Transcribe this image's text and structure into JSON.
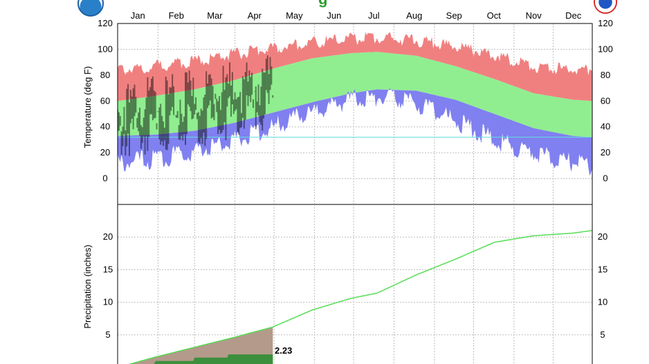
{
  "title": {
    "visible_text": "g",
    "color": "#2e9b2e"
  },
  "logos": {
    "left": {
      "name": "noaa-logo-icon"
    },
    "right": {
      "name": "nws-logo-icon"
    }
  },
  "chart_data": [
    {
      "type": "area",
      "panel": "temperature",
      "months": [
        "Jan",
        "Feb",
        "Mar",
        "Apr",
        "May",
        "Jun",
        "Jul",
        "Aug",
        "Sep",
        "Oct",
        "Nov",
        "Dec"
      ],
      "ylabel": "Temperature (deg F)",
      "ylim": [
        -20,
        120
      ],
      "yticks": [
        0,
        20,
        40,
        60,
        80,
        100,
        120
      ],
      "grid": true,
      "freeze_line": 32,
      "observed_through_day": 120,
      "normals": {
        "doy": [
          1,
          30,
          60,
          90,
          120,
          150,
          180,
          200,
          230,
          260,
          290,
          320,
          350,
          365
        ],
        "high": [
          60,
          64,
          69,
          76,
          85,
          93,
          97,
          98,
          95,
          87,
          77,
          66,
          61,
          60
        ],
        "low": [
          33,
          34,
          37,
          43,
          51,
          59,
          66,
          69,
          68,
          61,
          50,
          39,
          33,
          32
        ]
      },
      "records": {
        "doy": [
          1,
          30,
          60,
          90,
          120,
          150,
          180,
          200,
          215,
          230,
          260,
          290,
          320,
          350,
          365
        ],
        "high": [
          84,
          87,
          91,
          96,
          101,
          105,
          108,
          109,
          108,
          107,
          102,
          96,
          87,
          84,
          85
        ],
        "low": [
          12,
          15,
          21,
          30,
          40,
          51,
          61,
          63,
          62,
          58,
          45,
          30,
          20,
          12,
          10
        ]
      },
      "colors": {
        "record": "#f08080",
        "normal": "#90ee90",
        "low_record": "#8080f0",
        "observed": "#000000",
        "freeze": "#66dddd"
      }
    },
    {
      "type": "line",
      "panel": "precipitation",
      "ylabel": "Precipitation (inches)",
      "ylim": [
        0,
        25
      ],
      "yticks": [
        5,
        10,
        15,
        20
      ],
      "grid": true,
      "normal_cumulative": {
        "doy": [
          1,
          30,
          60,
          90,
          120,
          150,
          180,
          200,
          230,
          260,
          290,
          320,
          350,
          365
        ],
        "value": [
          0,
          1.6,
          3.1,
          4.6,
          6.2,
          8.8,
          10.6,
          11.4,
          14.2,
          16.6,
          19.2,
          20.2,
          20.6,
          21
        ]
      },
      "observed_cumulative": {
        "doy": [
          1,
          30,
          60,
          90,
          120
        ],
        "value": [
          0,
          0.8,
          1.3,
          1.9,
          2.23
        ]
      },
      "observed_label": "2.23",
      "colors": {
        "normal_line": "#55dd55",
        "normal_fill": "#b49a8a",
        "observed_fill": "#3c8f3c"
      }
    }
  ]
}
